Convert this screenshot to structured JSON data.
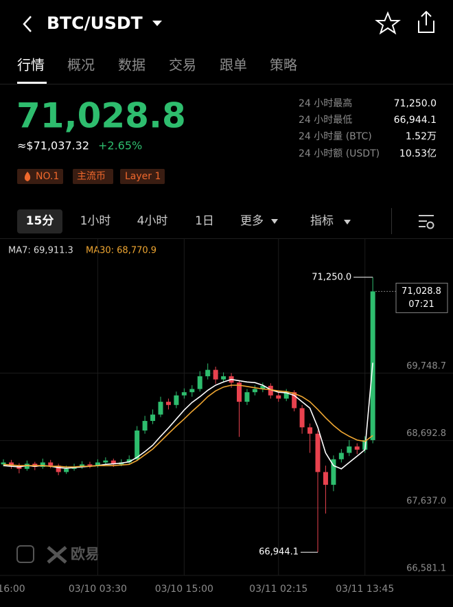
{
  "header": {
    "pair": "BTC/USDT"
  },
  "tabs": [
    "行情",
    "概况",
    "数据",
    "交易",
    "跟单",
    "策略"
  ],
  "price": {
    "last": "71,028.8",
    "usd": "≈$71,037.32",
    "change": "+2.65%"
  },
  "tags": [
    "NO.1",
    "主流币",
    "Layer 1"
  ],
  "stats": [
    [
      "24 小时最高",
      "71,250.0"
    ],
    [
      "24 小时最低",
      "66,944.1"
    ],
    [
      "24 小时量 (BTC)",
      "1.52万"
    ],
    [
      "24 小时额 (USDT)",
      "10.53亿"
    ]
  ],
  "periods": [
    "15分",
    "1小时",
    "4小时",
    "1日",
    "更多",
    "指标"
  ],
  "watermark": "欧易",
  "chart": {
    "type": "candlestick",
    "ma7_label": "MA7: 69,911.3",
    "ma30_label": "MA30: 68,770.9",
    "categories": [
      null,
      "16:00",
      null,
      null,
      null,
      null,
      null,
      null,
      null,
      null,
      null,
      null,
      "03/10 03:30",
      null,
      null,
      null,
      null,
      null,
      null,
      null,
      null,
      null,
      null,
      "03/10 15:00",
      null,
      null,
      null,
      null,
      null,
      null,
      null,
      null,
      null,
      null,
      null,
      "03/11 02:15",
      null,
      null,
      null,
      null,
      null,
      null,
      null,
      null,
      null,
      null,
      "03/11 13:45",
      null
    ],
    "candles": [
      [
        68320,
        68400,
        68290,
        68350
      ],
      [
        68350,
        68390,
        68250,
        68300
      ],
      [
        68300,
        68340,
        68180,
        68250
      ],
      [
        68250,
        68380,
        68220,
        68330
      ],
      [
        68330,
        68360,
        68230,
        68280
      ],
      [
        68280,
        68410,
        68250,
        68350
      ],
      [
        68350,
        68390,
        68260,
        68300
      ],
      [
        68300,
        68330,
        68150,
        68200
      ],
      [
        68200,
        68300,
        68170,
        68250
      ],
      [
        68250,
        68330,
        68220,
        68280
      ],
      [
        68280,
        68370,
        68250,
        68320
      ],
      [
        68320,
        68360,
        68260,
        68300
      ],
      [
        68300,
        68400,
        68270,
        68350
      ],
      [
        68350,
        68430,
        68320,
        68380
      ],
      [
        68380,
        68410,
        68280,
        68320
      ],
      [
        68320,
        68400,
        68290,
        68350
      ],
      [
        68350,
        68460,
        68320,
        68400
      ],
      [
        68400,
        68920,
        68380,
        68850
      ],
      [
        68850,
        69080,
        68800,
        69000
      ],
      [
        69000,
        69180,
        68950,
        69100
      ],
      [
        69100,
        69380,
        69060,
        69300
      ],
      [
        69300,
        69350,
        69180,
        69250
      ],
      [
        69250,
        69460,
        69200,
        69400
      ],
      [
        69400,
        69510,
        69350,
        69450
      ],
      [
        69450,
        69560,
        69380,
        69500
      ],
      [
        69500,
        69780,
        69460,
        69700
      ],
      [
        69700,
        69900,
        69650,
        69800
      ],
      [
        69800,
        69850,
        69580,
        69650
      ],
      [
        69650,
        69760,
        69600,
        69700
      ],
      [
        69700,
        69750,
        69520,
        69600
      ],
      [
        69600,
        69640,
        68750,
        69300
      ],
      [
        69300,
        69500,
        69250,
        69450
      ],
      [
        69450,
        69560,
        69400,
        69500
      ],
      [
        69500,
        69600,
        69450,
        69550
      ],
      [
        69550,
        69590,
        69350,
        69400
      ],
      [
        69400,
        69450,
        69300,
        69350
      ],
      [
        69350,
        69500,
        69310,
        69450
      ],
      [
        69450,
        69480,
        69150,
        69200
      ],
      [
        69200,
        69250,
        68800,
        68900
      ],
      [
        68900,
        68960,
        68500,
        68800
      ],
      [
        68800,
        68850,
        66944.1,
        68200
      ],
      [
        68200,
        68300,
        67550,
        68000
      ],
      [
        68000,
        68460,
        67900,
        68400
      ],
      [
        68400,
        68560,
        68350,
        68500
      ],
      [
        68500,
        68700,
        68450,
        68600
      ],
      [
        68600,
        68650,
        68480,
        68550
      ],
      [
        68550,
        68760,
        68500,
        68700
      ],
      [
        68700,
        71250,
        68650,
        71028.8
      ]
    ],
    "series": [
      {
        "name": "MA7",
        "color": "#ffffff",
        "values": [
          68300,
          68290,
          68280,
          68300,
          68290,
          68300,
          68290,
          68270,
          68260,
          68270,
          68280,
          68290,
          68300,
          68320,
          68330,
          68340,
          68360,
          68430,
          68520,
          68620,
          68760,
          68890,
          69030,
          69170,
          69290,
          69380,
          69480,
          69560,
          69610,
          69650,
          69630,
          69610,
          69600,
          69560,
          69490,
          69450,
          69440,
          69400,
          69300,
          69200,
          68900,
          68500,
          68300,
          68250,
          68350,
          68450,
          68550,
          69911.3
        ]
      },
      {
        "name": "MA30",
        "color": "#f0a732",
        "values": [
          68320,
          68310,
          68300,
          68300,
          68300,
          68300,
          68290,
          68290,
          68280,
          68280,
          68290,
          68290,
          68300,
          68300,
          68300,
          68310,
          68320,
          68380,
          68470,
          68560,
          68680,
          68800,
          68920,
          69030,
          69150,
          69260,
          69380,
          69470,
          69530,
          69560,
          69560,
          69540,
          69520,
          69500,
          69490,
          69470,
          69460,
          69430,
          69380,
          69300,
          69180,
          69050,
          68930,
          68830,
          68760,
          68700,
          68680,
          68770.9
        ]
      }
    ],
    "up_color": "#2ebd6e",
    "down_color": "#e8424e",
    "ylim": [
      66581.1,
      71860.6
    ],
    "yticks": [
      {
        "value": 69748.7,
        "label": "69,748.7"
      },
      {
        "value": 68692.8,
        "label": "68,692.8"
      },
      {
        "value": 67637.0,
        "label": "67,637.0"
      },
      {
        "value": 66581.1,
        "label": "66,581.1"
      }
    ],
    "high": {
      "value": 71250,
      "label": "71,250.0"
    },
    "low": {
      "value": 66944.1,
      "label": "66,944.1"
    },
    "last": {
      "value": 71028.8,
      "label": "71,028.8",
      "time": "07:21"
    },
    "grid": true
  }
}
